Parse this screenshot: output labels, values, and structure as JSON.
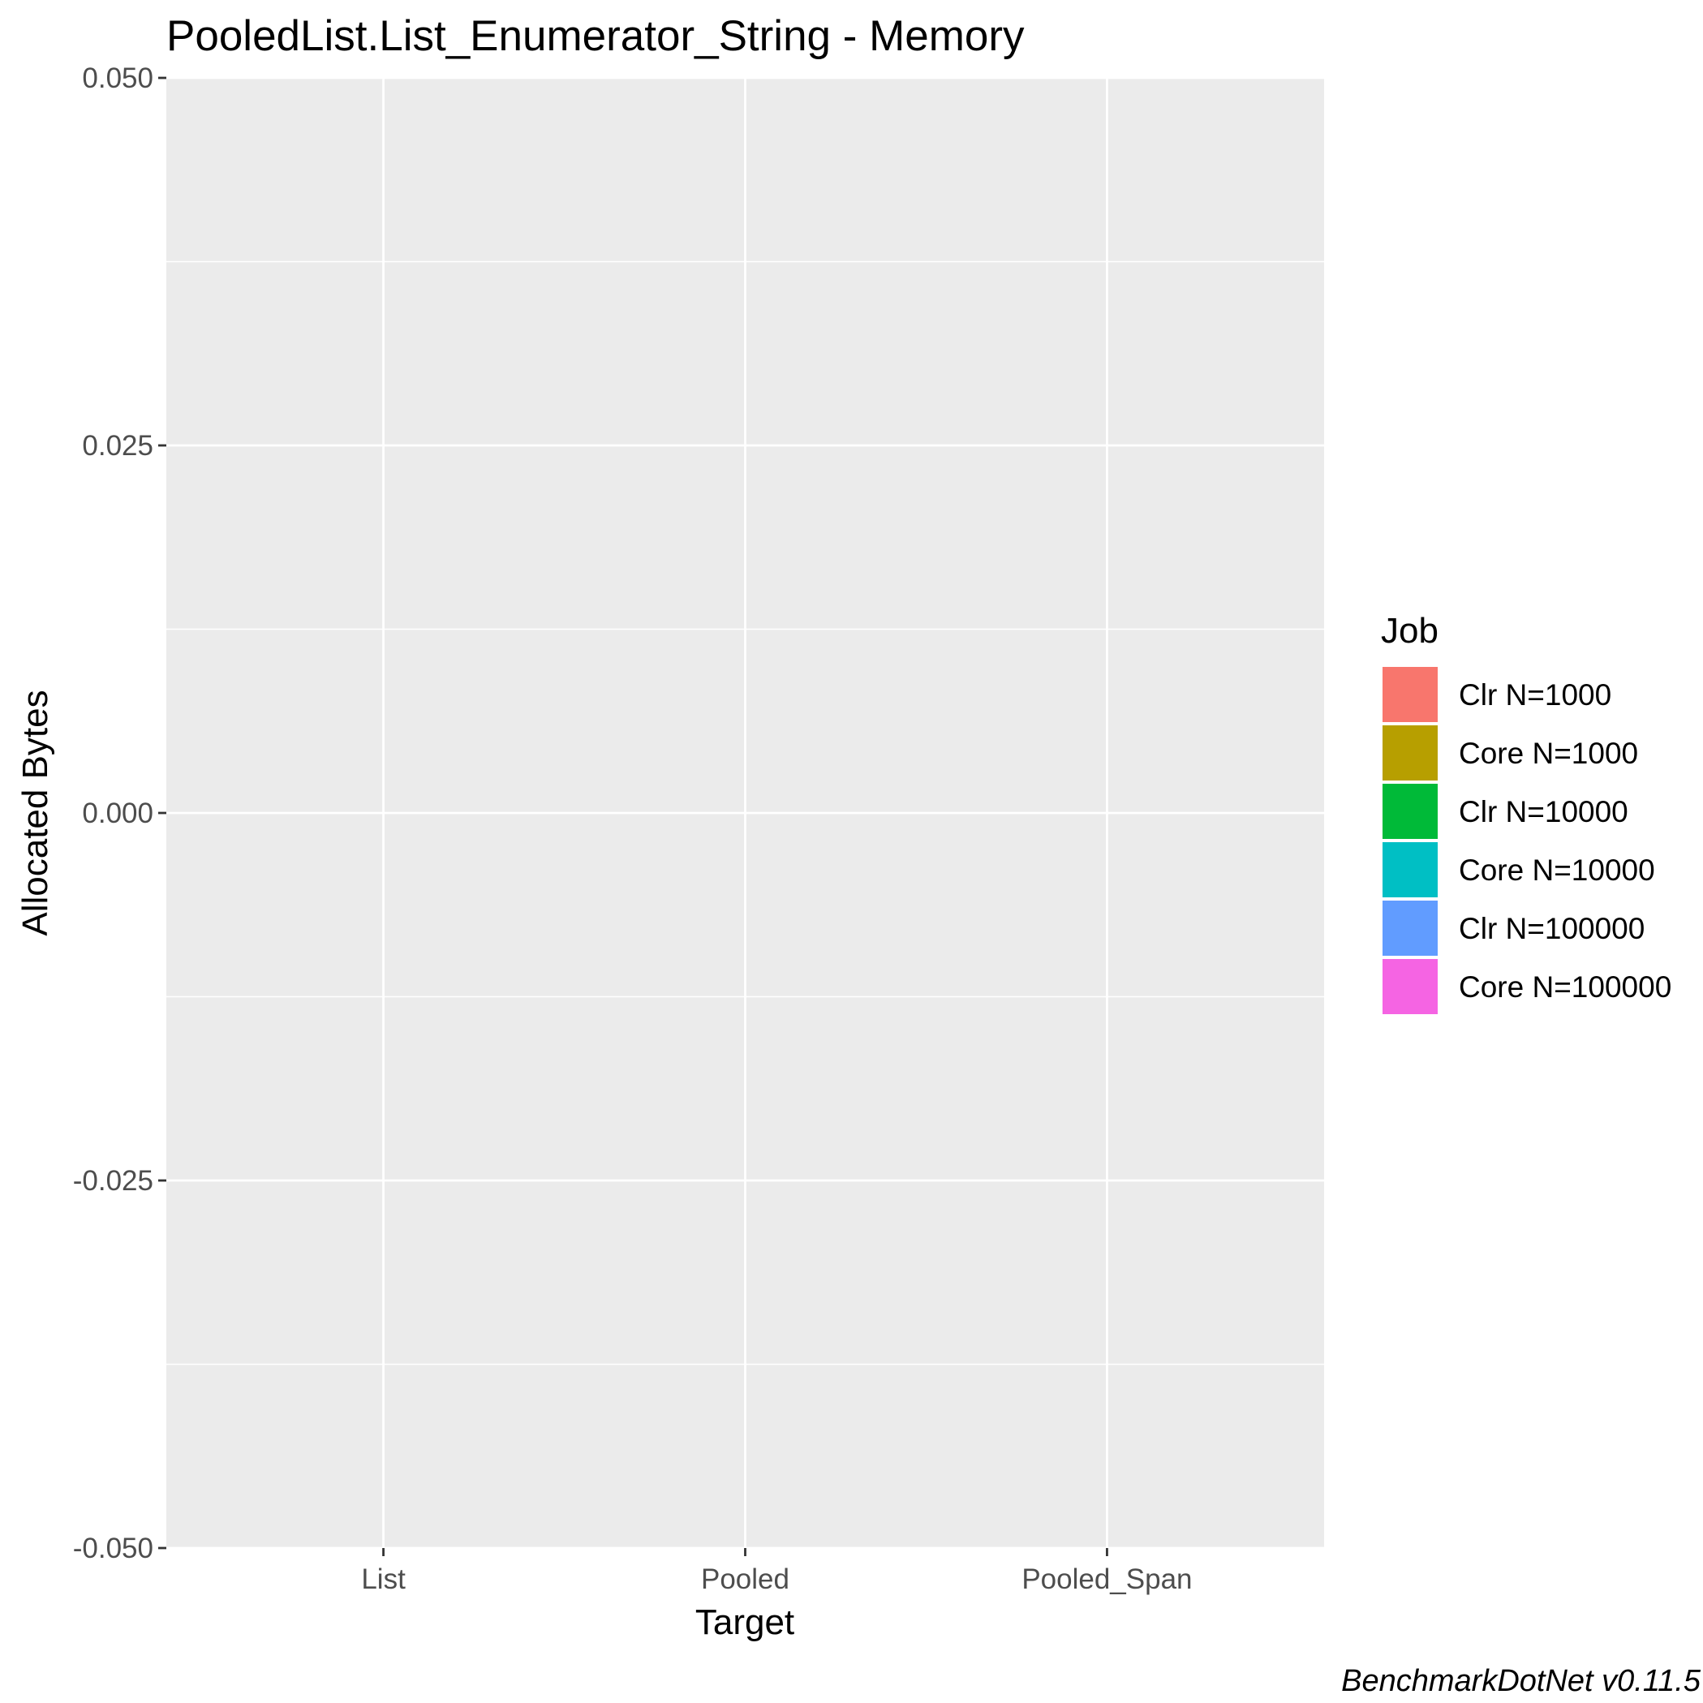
{
  "chart_data": {
    "type": "bar",
    "title": "PooledList.List_Enumerator_String - Memory",
    "xlabel": "Target",
    "ylabel": "Allocated  Bytes",
    "categories": [
      "List",
      "Pooled",
      "Pooled_Span"
    ],
    "y_ticks": [
      "-0.050",
      "-0.025",
      "0.000",
      "0.025",
      "0.050"
    ],
    "y_tick_values": [
      -0.05,
      -0.025,
      0.0,
      0.025,
      0.05
    ],
    "ylim": [
      -0.05,
      0.05
    ],
    "grid": true,
    "legend": {
      "title": "Job",
      "position": "right"
    },
    "series": [
      {
        "name": "Clr N=1000",
        "color": "#F8766D",
        "values": [
          null,
          null,
          null
        ]
      },
      {
        "name": "Core N=1000",
        "color": "#B79F00",
        "values": [
          null,
          null,
          null
        ]
      },
      {
        "name": "Clr N=10000",
        "color": "#00BA38",
        "values": [
          null,
          null,
          null
        ]
      },
      {
        "name": "Core N=10000",
        "color": "#00BFC4",
        "values": [
          null,
          null,
          null
        ]
      },
      {
        "name": "Clr N=100000",
        "color": "#619CFF",
        "values": [
          null,
          null,
          null
        ]
      },
      {
        "name": "Core N=100000",
        "color": "#F564E3",
        "values": [
          null,
          null,
          null
        ]
      }
    ],
    "caption": "BenchmarkDotNet v0.11.5"
  },
  "colors": {
    "panel_background": "#EBEBEB",
    "grid_line": "#FFFFFF",
    "tick_text": "#4D4D4D",
    "tick_mark": "#333333"
  }
}
